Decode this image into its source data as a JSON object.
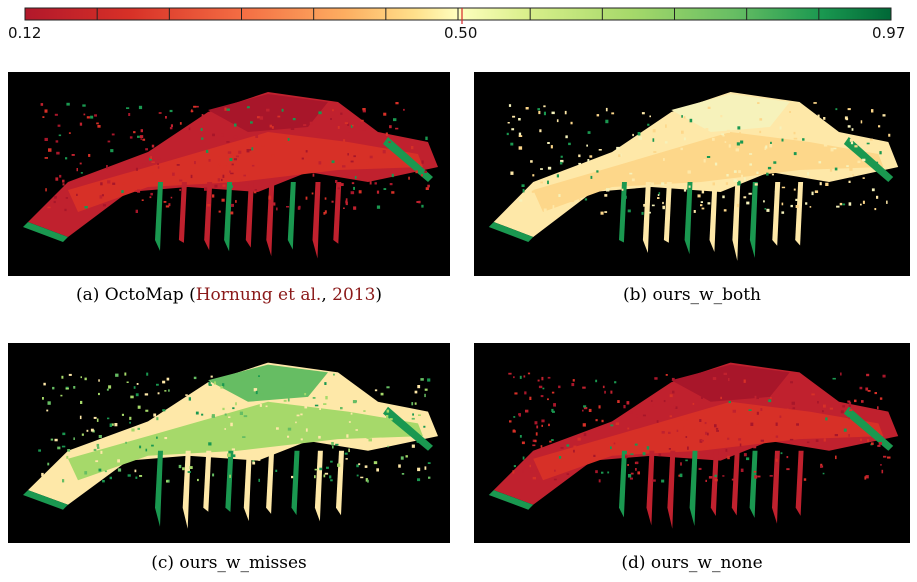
{
  "colorbar": {
    "min_label": "0.12",
    "mid_label": "0.50",
    "max_label": "0.97",
    "min_value": 0.12,
    "mid_value": 0.5,
    "max_value": 0.97,
    "colors": [
      "#b2182b",
      "#d73027",
      "#f46d43",
      "#fdae61",
      "#fee08b",
      "#ffffbf",
      "#d9ef8b",
      "#a6d96a",
      "#66bd63",
      "#1a9850",
      "#006837"
    ]
  },
  "panels": [
    {
      "id": "a",
      "caption_prefix": "(a) OctoMap (",
      "caption_cite_author": "Hornung et al.",
      "caption_sep": ", ",
      "caption_cite_year": "2013",
      "caption_suffix": ")",
      "dominant": [
        "#c0212e",
        "#d73027",
        "#a8162a"
      ],
      "edge": "#1a9850"
    },
    {
      "id": "b",
      "caption": "(b) ours_w_both",
      "dominant": [
        "#fee8a8",
        "#fdd78a",
        "#f6f2bb"
      ],
      "edge": "#1a9850"
    },
    {
      "id": "c",
      "caption": "(c) ours_w_misses",
      "dominant": [
        "#fee8a8",
        "#a6d96a",
        "#66bd63"
      ],
      "edge": "#1a9850"
    },
    {
      "id": "d",
      "caption": "(d) ours_w_none",
      "dominant": [
        "#c0212e",
        "#d73027",
        "#a8162a"
      ],
      "edge": "#1a9850"
    }
  ]
}
